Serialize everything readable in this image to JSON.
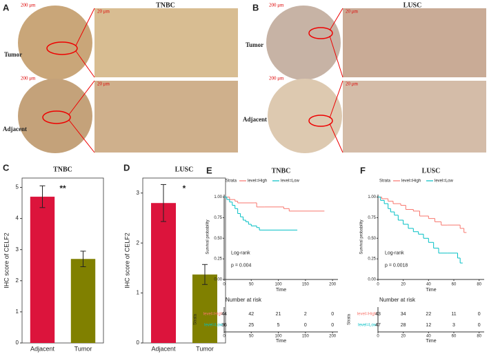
{
  "image_panels": [
    {
      "panel": "A",
      "title": "TNBC",
      "rows": [
        "Tumor",
        "Adjacent"
      ],
      "scale_bars": [
        "200 μm",
        "20 μm"
      ]
    },
    {
      "panel": "B",
      "title": "LUSC",
      "rows": [
        "Tumor",
        "Adjacent"
      ],
      "scale_bars": [
        "200 μm",
        "20 μm"
      ]
    }
  ],
  "chart_data": [
    {
      "type": "bar",
      "panel": "C",
      "title": "TNBC",
      "ylabel": "IHC score of CELF2",
      "annotation": "**",
      "categories": [
        "Adjacent",
        "Tumor"
      ],
      "values": [
        4.7,
        2.7
      ],
      "errors": [
        0.35,
        0.25
      ],
      "colors": [
        "#dc143c",
        "#808000"
      ],
      "ylim": [
        0,
        5.3
      ],
      "yticks": [
        0,
        1,
        2,
        3,
        4,
        5
      ]
    },
    {
      "type": "bar",
      "panel": "D",
      "title": "LUSC",
      "ylabel": "IHC score of CELF2",
      "annotation": "*",
      "categories": [
        "Adjacent",
        "Tumor"
      ],
      "values": [
        2.8,
        1.37
      ],
      "errors": [
        0.37,
        0.2
      ],
      "colors": [
        "#dc143c",
        "#808000"
      ],
      "ylim": [
        0,
        3.3
      ],
      "yticks": [
        0,
        1,
        2,
        3
      ]
    },
    {
      "type": "survival",
      "panel": "E",
      "title": "TNBC",
      "legend_title": "Strata",
      "xlabel": "Time",
      "ylabel": "Survival probability",
      "annotations": [
        "Log-rank",
        "p = 0.004"
      ],
      "xlim": [
        0,
        210
      ],
      "xticks": [
        0,
        50,
        100,
        150,
        200
      ],
      "ylim": [
        0,
        1.03
      ],
      "yticks": [
        {
          "value": 0,
          "label": "0.00"
        },
        0.25,
        {
          "value": 0.5,
          "label": "0.50"
        },
        0.75,
        {
          "value": 1,
          "label": "1.00"
        }
      ],
      "series": [
        {
          "name": "level=High",
          "color": "#f8766d",
          "x": [
            0,
            10,
            20,
            25,
            55,
            60,
            75,
            110,
            120,
            185
          ],
          "y": [
            1,
            0.97,
            0.95,
            0.93,
            0.93,
            0.88,
            0.88,
            0.86,
            0.83,
            0.83
          ]
        },
        {
          "name": "level=Low",
          "color": "#00bfc4",
          "x": [
            0,
            5,
            10,
            15,
            20,
            25,
            30,
            35,
            40,
            45,
            50,
            60,
            65,
            70,
            135
          ],
          "y": [
            1,
            0.97,
            0.94,
            0.9,
            0.86,
            0.8,
            0.76,
            0.72,
            0.7,
            0.67,
            0.65,
            0.63,
            0.6,
            0.6,
            0.6
          ]
        }
      ],
      "risk_table": {
        "title": "Number at risk",
        "ylabel": "Strata",
        "rows": [
          [
            44,
            42,
            21,
            2,
            0
          ],
          [
            36,
            25,
            5,
            0,
            0
          ]
        ]
      }
    },
    {
      "type": "survival",
      "panel": "F",
      "title": "LUSC",
      "legend_title": "Strata",
      "xlabel": "Time",
      "ylabel": "Survival probability",
      "annotations": [
        "Log-rank",
        "p = 0.0018"
      ],
      "xlim": [
        0,
        84
      ],
      "xticks": [
        0,
        20,
        40,
        60,
        80
      ],
      "ylim": [
        0,
        1.03
      ],
      "yticks": [
        {
          "value": 0,
          "label": "0.00"
        },
        0.25,
        {
          "value": 0.5,
          "label": "0.50"
        },
        0.75,
        {
          "value": 1,
          "label": "1.00"
        }
      ],
      "series": [
        {
          "name": "level=High",
          "color": "#f8766d",
          "x": [
            0,
            3,
            8,
            12,
            18,
            22,
            28,
            33,
            40,
            45,
            50,
            55,
            65,
            68,
            70
          ],
          "y": [
            1,
            0.98,
            0.95,
            0.92,
            0.9,
            0.85,
            0.83,
            0.77,
            0.74,
            0.7,
            0.66,
            0.66,
            0.62,
            0.57,
            0.57
          ]
        },
        {
          "name": "level=Low",
          "color": "#00bfc4",
          "x": [
            0,
            2,
            5,
            8,
            10,
            13,
            16,
            20,
            24,
            28,
            32,
            36,
            40,
            44,
            48,
            55,
            63,
            65,
            67
          ],
          "y": [
            1,
            0.96,
            0.92,
            0.86,
            0.82,
            0.78,
            0.72,
            0.67,
            0.62,
            0.58,
            0.55,
            0.5,
            0.45,
            0.38,
            0.32,
            0.32,
            0.26,
            0.2,
            0.2
          ]
        }
      ],
      "risk_table": {
        "title": "Number at risk",
        "ylabel": "Strata",
        "rows": [
          [
            43,
            34,
            22,
            11,
            0
          ],
          [
            47,
            28,
            12,
            3,
            0
          ]
        ]
      }
    }
  ]
}
